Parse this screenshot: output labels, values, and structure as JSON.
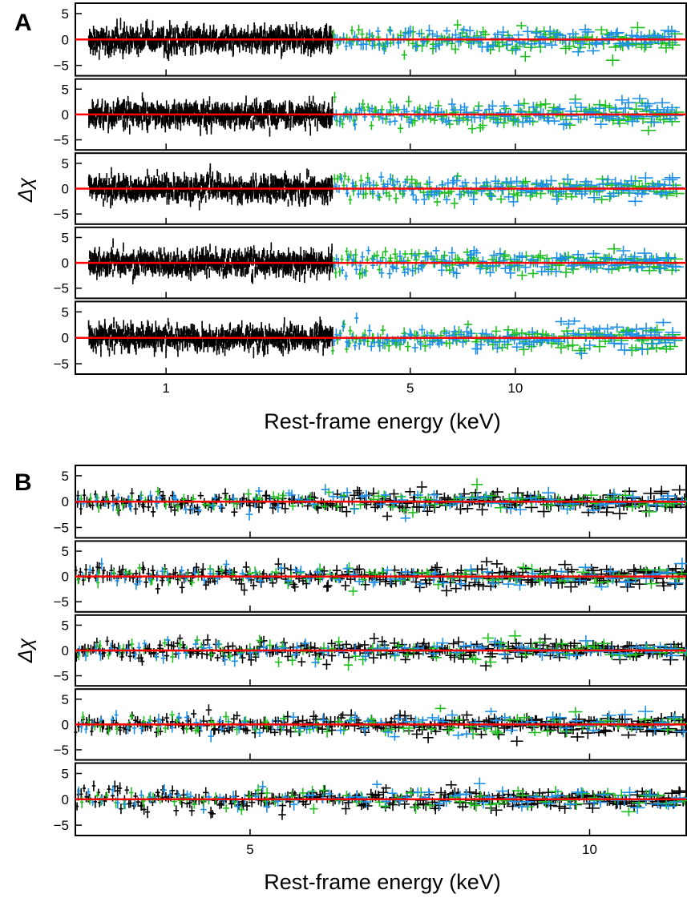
{
  "figure": {
    "colors": {
      "instrument_1": "#000000",
      "instrument_2": "#1fbf1f",
      "instrument_3": "#1e8fe6",
      "model": "#ff0000"
    }
  },
  "chart_data": [
    {
      "panel_label": "A",
      "type": "scatter",
      "xlabel": "Rest-frame energy (keV)",
      "ylabel": "Δχ",
      "xscale": "log",
      "xlim": [
        0.55,
        31
      ],
      "ylim": [
        -7,
        7
      ],
      "xticks": [
        1,
        5,
        10
      ],
      "yticks": [
        -5,
        0,
        5
      ],
      "subpanels": 5,
      "reference_line_y": 0,
      "series_note": "residuals shown as error bars in three colours: black (0.6–3 keV soft band plus hard band), green and blue (3–30 keV)",
      "black_range_keV": [
        0.6,
        3.0
      ],
      "green_range_keV": [
        3.0,
        29
      ],
      "blue_range_keV": [
        3.0,
        29
      ],
      "scatter_std": 1.1,
      "grid": false
    },
    {
      "panel_label": "B",
      "type": "scatter",
      "xlabel": "Rest-frame energy (keV)",
      "ylabel": "Δχ",
      "xscale": "log",
      "xlim": [
        3.5,
        12.2
      ],
      "ylim": [
        -7,
        7
      ],
      "xticks": [
        5,
        10
      ],
      "yticks": [
        -5,
        0,
        5
      ],
      "subpanels": 5,
      "reference_line_y": 0,
      "series_note": "black, green and blue residual error bars across 3.5–12 keV",
      "black_range_keV": [
        3.5,
        12.2
      ],
      "green_range_keV": [
        3.5,
        12.2
      ],
      "blue_range_keV": [
        3.5,
        12.2
      ],
      "scatter_std": 1.0,
      "grid": false
    }
  ]
}
